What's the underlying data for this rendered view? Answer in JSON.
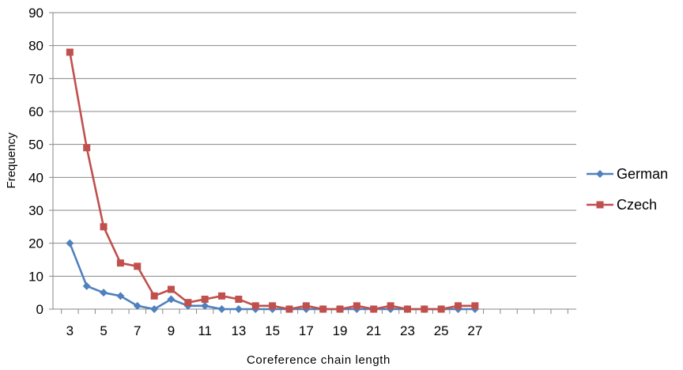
{
  "chart_data": {
    "type": "line",
    "xlabel": "Coreference chain length",
    "ylabel": "Frequency",
    "ylim": [
      0,
      90
    ],
    "yticks": [
      0,
      10,
      20,
      30,
      40,
      50,
      60,
      70,
      80,
      90
    ],
    "x_range": [
      2,
      33
    ],
    "xtick_labels": [
      3,
      5,
      7,
      9,
      11,
      13,
      15,
      17,
      19,
      21,
      23,
      25,
      27
    ],
    "grid": "horizontal",
    "legend_position": "right",
    "series": [
      {
        "name": "German",
        "color": "#4F81BD",
        "marker": "diamond",
        "x": [
          3,
          4,
          5,
          6,
          7,
          8,
          9,
          10,
          11,
          12,
          13,
          14,
          15,
          16,
          17,
          18,
          19,
          20,
          21,
          22,
          23,
          24,
          25,
          26,
          27
        ],
        "values": [
          20,
          7,
          5,
          4,
          1,
          0,
          3,
          1,
          1,
          0,
          0,
          0,
          0,
          0,
          0,
          0,
          0,
          0,
          0,
          0,
          0,
          0,
          0,
          0,
          0
        ]
      },
      {
        "name": "Czech",
        "color": "#C0504D",
        "marker": "square",
        "x": [
          3,
          4,
          5,
          6,
          7,
          8,
          9,
          10,
          11,
          12,
          13,
          14,
          15,
          16,
          17,
          18,
          19,
          20,
          21,
          22,
          23,
          24,
          25,
          26,
          27
        ],
        "values": [
          78,
          49,
          25,
          14,
          13,
          4,
          6,
          2,
          3,
          4,
          3,
          1,
          1,
          0,
          1,
          0,
          0,
          1,
          0,
          1,
          0,
          0,
          0,
          1,
          1
        ]
      }
    ]
  }
}
